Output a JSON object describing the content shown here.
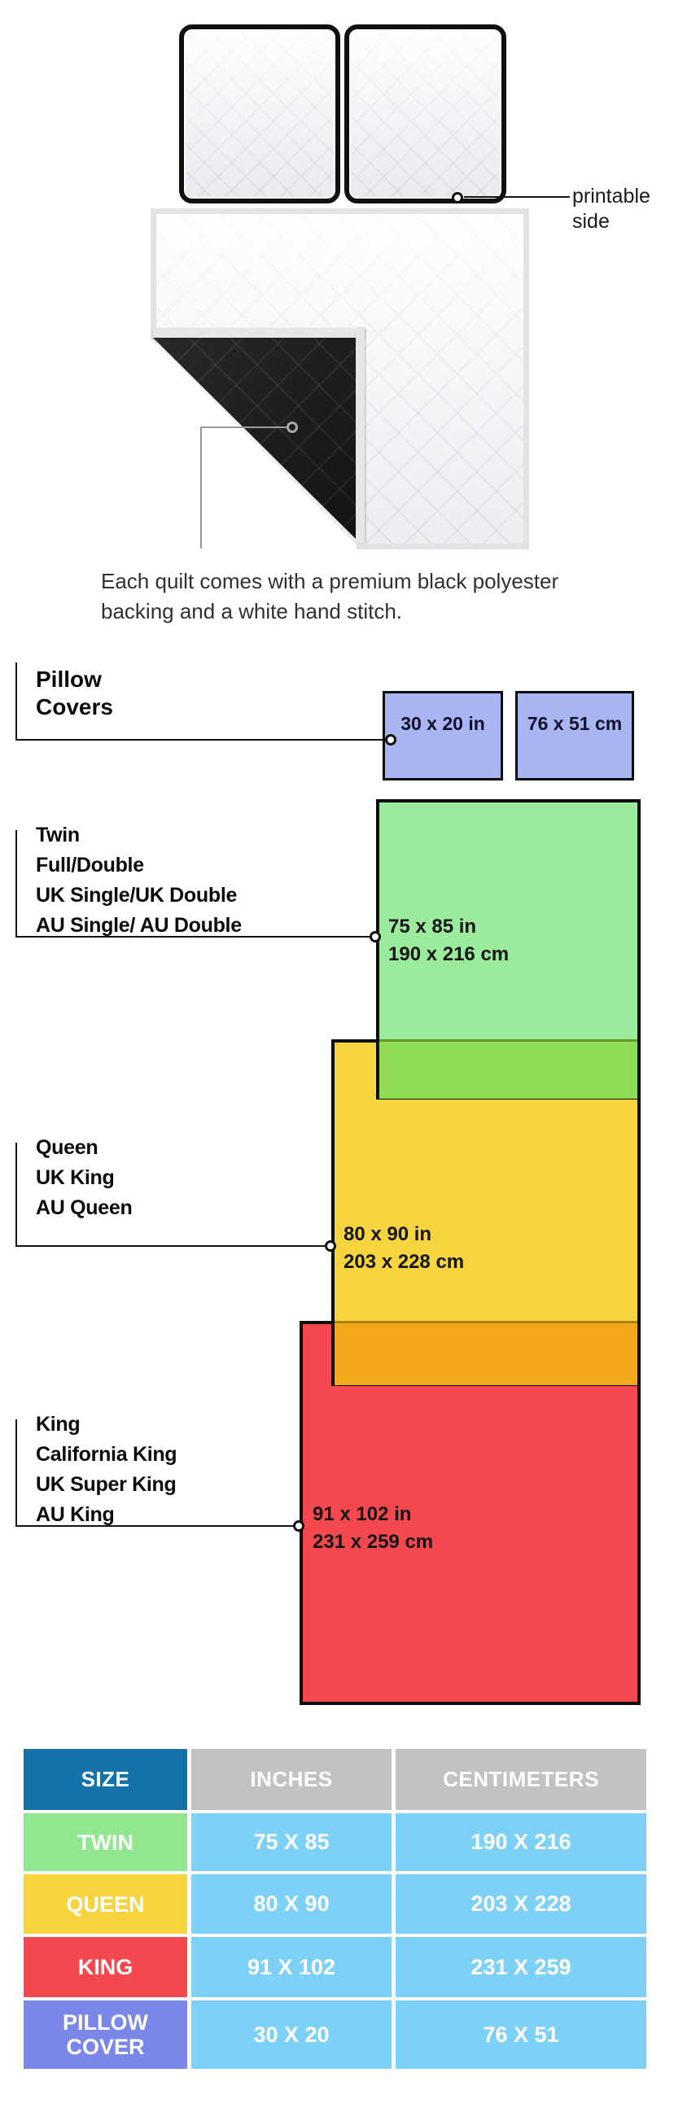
{
  "illustration": {
    "printable_side": "printable side",
    "caption": [
      "Each quilt comes with a premium black polyester",
      "backing and a white hand stitch."
    ]
  },
  "diagram": {
    "pillow_covers": {
      "label": [
        "Pillow",
        "Covers"
      ],
      "inch_box": "30 x 20 in",
      "cm_box": "76 x 51 cm",
      "box_color": "#A9B5F0"
    },
    "twin": {
      "label": [
        "Twin",
        "Full/Double",
        "UK Single/UK Double",
        "AU Single/ AU Double"
      ],
      "inches": "75 x 85 in",
      "cm": "190 x 216 cm",
      "box_color": "#9AEB9B",
      "overlap_color": "#8FDC52"
    },
    "queen": {
      "label": [
        "Queen",
        "UK King",
        "AU Queen"
      ],
      "inches": "80 x 90 in",
      "cm": "203 x 228 cm",
      "box_color": "#F5D440",
      "overlap_color": "#F3A81B"
    },
    "king": {
      "label": [
        "King",
        "California King",
        "UK Super King",
        "AU King"
      ],
      "inches": "91 x 102 in",
      "cm": "231 x 259 cm",
      "box_color": "#F4484E"
    }
  },
  "table": {
    "headers": [
      "SIZE",
      "INCHES",
      "CENTIMETERS"
    ],
    "header_size_color": "#1373A8",
    "header_other_color": "#C2C2C2",
    "value_cell_color": "#7ED1F6",
    "rows": [
      {
        "size": "TWIN",
        "inches": "75 X 85",
        "cm": "190 X 216",
        "color": "#90E78F"
      },
      {
        "size": "QUEEN",
        "inches": "80 X 90",
        "cm": "203 X 228",
        "color": "#F5D440"
      },
      {
        "size": "KING",
        "inches": "91 X 102",
        "cm": "231 X 259",
        "color": "#F4484E"
      },
      {
        "size": "PILLOW COVER",
        "inches": "30 X 20",
        "cm": "76 X 51",
        "color": "#7B87E8"
      }
    ]
  }
}
